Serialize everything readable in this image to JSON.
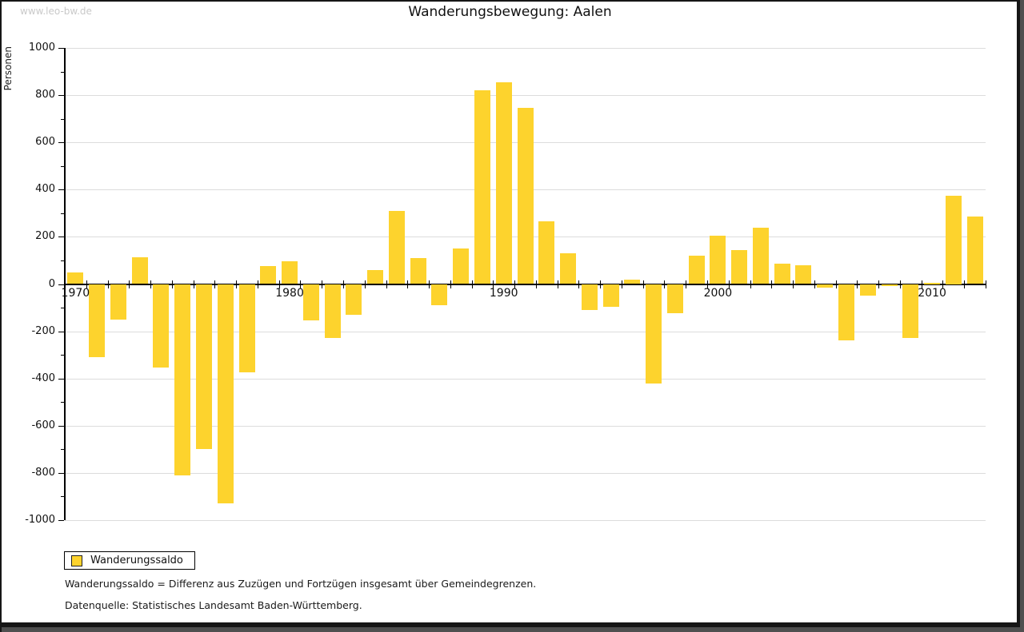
{
  "watermark": "www.leo-bw.de",
  "title": "Wanderungsbewegung: Aalen",
  "y_axis_label": "Personen",
  "legend": {
    "items": [
      {
        "label": "Wanderungssaldo",
        "color": "#FDD32D"
      }
    ]
  },
  "footnotes": [
    "Wanderungssaldo = Differenz aus Zuzügen und Fortzügen insgesamt über Gemeindegrenzen.",
    "Datenquelle: Statistisches Landesamt Baden-Württemberg."
  ],
  "colors": {
    "bar": "#FDD32D",
    "grid": "#dcdcdc",
    "axis": "#000000",
    "watermark": "#c9c9c9",
    "frame_shadow": "#4f4f4f"
  },
  "chart_data": {
    "type": "bar",
    "title": "Wanderungsbewegung: Aalen",
    "xlabel": "",
    "ylabel": "Personen",
    "ylim": [
      -1000,
      1000
    ],
    "y_tick_step": 200,
    "y_minor_tick_step": 100,
    "grid": true,
    "legend_position": "bottom-left",
    "x_tick_labels": [
      "1970",
      "1980",
      "1990",
      "2000",
      "2010"
    ],
    "x": [
      1970,
      1971,
      1972,
      1973,
      1974,
      1975,
      1976,
      1977,
      1978,
      1979,
      1980,
      1981,
      1982,
      1983,
      1984,
      1985,
      1986,
      1987,
      1988,
      1989,
      1990,
      1991,
      1992,
      1993,
      1994,
      1995,
      1996,
      1997,
      1998,
      1999,
      2000,
      2001,
      2002,
      2003,
      2004,
      2005,
      2006,
      2007,
      2008,
      2009,
      2010,
      2011,
      2012
    ],
    "series": [
      {
        "name": "Wanderungssaldo",
        "values": [
          50,
          -310,
          -150,
          115,
          -355,
          -810,
          -700,
          -930,
          -375,
          75,
          95,
          -155,
          -230,
          -130,
          60,
          310,
          110,
          -90,
          150,
          820,
          855,
          745,
          265,
          130,
          -110,
          -95,
          20,
          -420,
          -125,
          120,
          205,
          145,
          240,
          85,
          80,
          -15,
          -240,
          -50,
          -10,
          -230,
          5,
          375,
          285
        ]
      }
    ]
  }
}
